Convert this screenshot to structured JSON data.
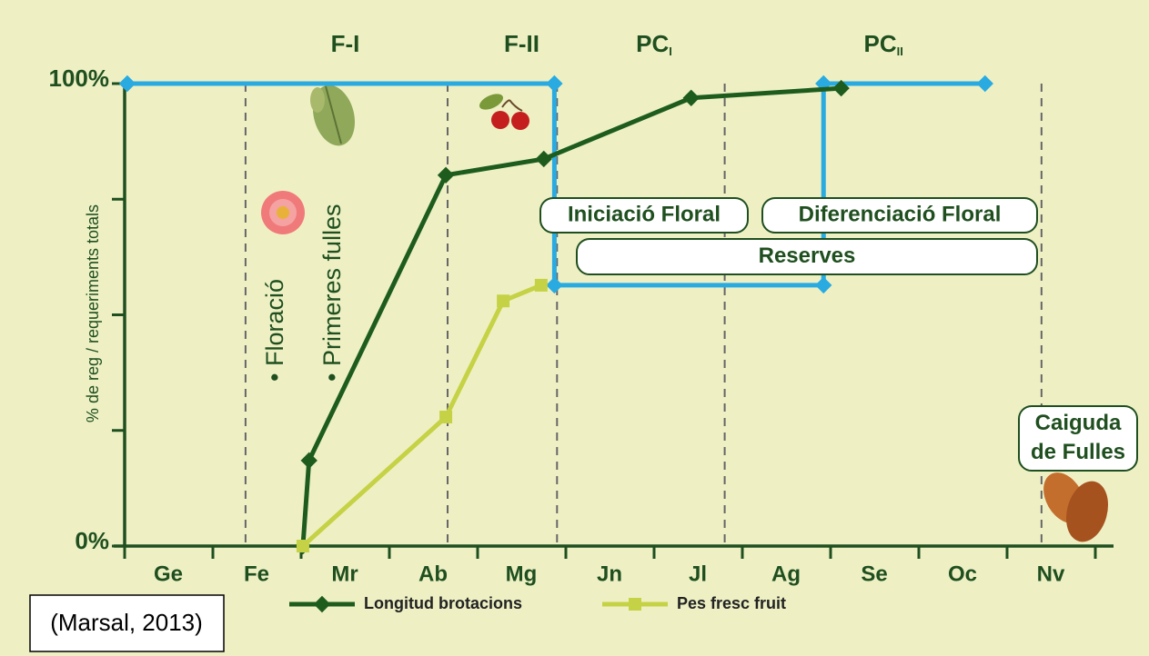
{
  "chart_data": {
    "type": "line",
    "ylabel": "% de reg / requeriments totals",
    "categories": [
      "Ge",
      "Fe",
      "Mr",
      "Ab",
      "Mg",
      "Jn",
      "Jl",
      "Ag",
      "Se",
      "Oc",
      "Nv"
    ],
    "xlim": [
      0,
      11
    ],
    "ylim": [
      0,
      100
    ],
    "yticks": [
      {
        "value": 0,
        "label": "0%"
      },
      {
        "value": 25,
        "label": null
      },
      {
        "value": 50,
        "label": null
      },
      {
        "value": 75,
        "label": null
      },
      {
        "value": 100,
        "label": "100%"
      }
    ],
    "phase_lines": [
      1.37,
      3.66,
      4.9,
      6.8,
      10.39
    ],
    "phases": [
      {
        "x": 2.5,
        "main": "F-I"
      },
      {
        "x": 4.5,
        "main": "F-II"
      },
      {
        "x": 6.0,
        "main": "PC",
        "sub": "I"
      },
      {
        "x": 8.6,
        "main": "PC",
        "sub": "II"
      }
    ],
    "series": [
      {
        "name": "Longitud brotacions",
        "color": "#1e5c1e",
        "marker": "diamond",
        "x": [
          2.02,
          2.09,
          3.64,
          4.75,
          6.42,
          8.12
        ],
        "values": [
          0,
          18.5,
          80.2,
          83.7,
          96.9,
          99
        ]
      },
      {
        "name": "Pes fresc fruit",
        "color": "#c5d245",
        "marker": "square",
        "x": [
          2.02,
          3.64,
          4.29,
          4.72
        ],
        "values": [
          0,
          27.9,
          53,
          56.4
        ]
      },
      {
        "color": "#29abe2",
        "marker": "diamond",
        "x": [
          0.03,
          4.87,
          4.87,
          7.92,
          7.92,
          9.75
        ],
        "values": [
          100,
          100,
          56.4,
          56.4,
          100,
          100
        ]
      }
    ],
    "annotations": [
      "• Floració",
      "• Primeres fulles"
    ],
    "boxes": [
      [
        "Iniciació Floral"
      ],
      [
        "Diferenciació Floral"
      ],
      [
        "Reserves"
      ],
      [
        "Caiguda",
        "de Fulles"
      ]
    ],
    "source": "(Marsal, 2013)"
  }
}
